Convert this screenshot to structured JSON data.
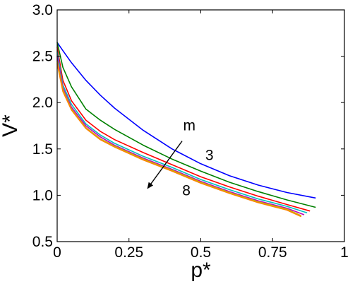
{
  "chart_data": {
    "type": "line",
    "xlabel": "p*",
    "ylabel": "V*",
    "xlim": [
      0,
      1
    ],
    "ylim": [
      0.5,
      3.0
    ],
    "x_ticks": [
      0,
      0.25,
      0.5,
      0.75,
      1
    ],
    "x_tick_labels": [
      "0",
      "0.25",
      "0.5",
      "0.75",
      "1"
    ],
    "y_ticks": [
      0.5,
      1.0,
      1.5,
      2.0,
      2.5,
      3.0
    ],
    "y_tick_labels": [
      "0.5",
      "1.0",
      "1.5",
      "2.0",
      "2.5",
      "3.0"
    ],
    "grid": false,
    "legend": "none",
    "series": [
      {
        "color": "#0000ff",
        "x": [
          0,
          0.02,
          0.05,
          0.1,
          0.15,
          0.2,
          0.3,
          0.4,
          0.5,
          0.6,
          0.7,
          0.8,
          0.9
        ],
        "y": [
          2.65,
          2.56,
          2.43,
          2.24,
          2.08,
          1.94,
          1.7,
          1.5,
          1.34,
          1.21,
          1.11,
          1.03,
          0.97
        ]
      },
      {
        "color": "#008000",
        "x": [
          0,
          0.02,
          0.05,
          0.1,
          0.15,
          0.2,
          0.3,
          0.4,
          0.5,
          0.6,
          0.7,
          0.8,
          0.9
        ],
        "y": [
          2.65,
          2.38,
          2.17,
          1.93,
          1.81,
          1.71,
          1.54,
          1.39,
          1.26,
          1.14,
          1.04,
          0.95,
          0.87
        ]
      },
      {
        "color": "#ff0000",
        "x": [
          0,
          0.02,
          0.05,
          0.1,
          0.15,
          0.2,
          0.3,
          0.4,
          0.5,
          0.6,
          0.7,
          0.8,
          0.88
        ],
        "y": [
          2.6,
          2.24,
          2.02,
          1.81,
          1.69,
          1.6,
          1.46,
          1.33,
          1.2,
          1.09,
          0.99,
          0.9,
          0.83
        ]
      },
      {
        "color": "#00bfbf",
        "x": [
          0,
          0.02,
          0.05,
          0.1,
          0.15,
          0.2,
          0.3,
          0.4,
          0.5,
          0.6,
          0.7,
          0.8,
          0.87
        ],
        "y": [
          2.55,
          2.19,
          1.98,
          1.77,
          1.65,
          1.56,
          1.42,
          1.3,
          1.17,
          1.06,
          0.96,
          0.88,
          0.81
        ]
      },
      {
        "color": "#bf00bf",
        "x": [
          0,
          0.02,
          0.05,
          0.1,
          0.15,
          0.2,
          0.3,
          0.4,
          0.5,
          0.6,
          0.7,
          0.8,
          0.86
        ],
        "y": [
          2.5,
          2.16,
          1.95,
          1.75,
          1.63,
          1.54,
          1.4,
          1.28,
          1.15,
          1.04,
          0.94,
          0.86,
          0.79
        ]
      },
      {
        "color": "#bfbf00",
        "x": [
          0,
          0.02,
          0.05,
          0.1,
          0.15,
          0.2,
          0.3,
          0.4,
          0.5,
          0.6,
          0.7,
          0.8,
          0.85
        ],
        "y": [
          2.45,
          2.14,
          1.93,
          1.73,
          1.61,
          1.53,
          1.39,
          1.27,
          1.14,
          1.03,
          0.93,
          0.85,
          0.78
        ]
      },
      {
        "color": "#ff8000",
        "x": [
          0,
          0.02,
          0.05,
          0.1,
          0.15,
          0.2,
          0.3,
          0.4,
          0.5,
          0.6,
          0.7,
          0.8,
          0.85
        ],
        "y": [
          2.42,
          2.12,
          1.92,
          1.72,
          1.6,
          1.52,
          1.38,
          1.26,
          1.13,
          1.02,
          0.92,
          0.84,
          0.77
        ]
      }
    ],
    "annotations": [
      {
        "text": "m",
        "x": 0.46,
        "y": 1.7
      },
      {
        "text": "3",
        "x": 0.53,
        "y": 1.38
      },
      {
        "text": "8",
        "x": 0.45,
        "y": 1.0
      }
    ],
    "arrow": {
      "from": [
        0.435,
        1.585
      ],
      "to": [
        0.315,
        1.075
      ]
    }
  }
}
